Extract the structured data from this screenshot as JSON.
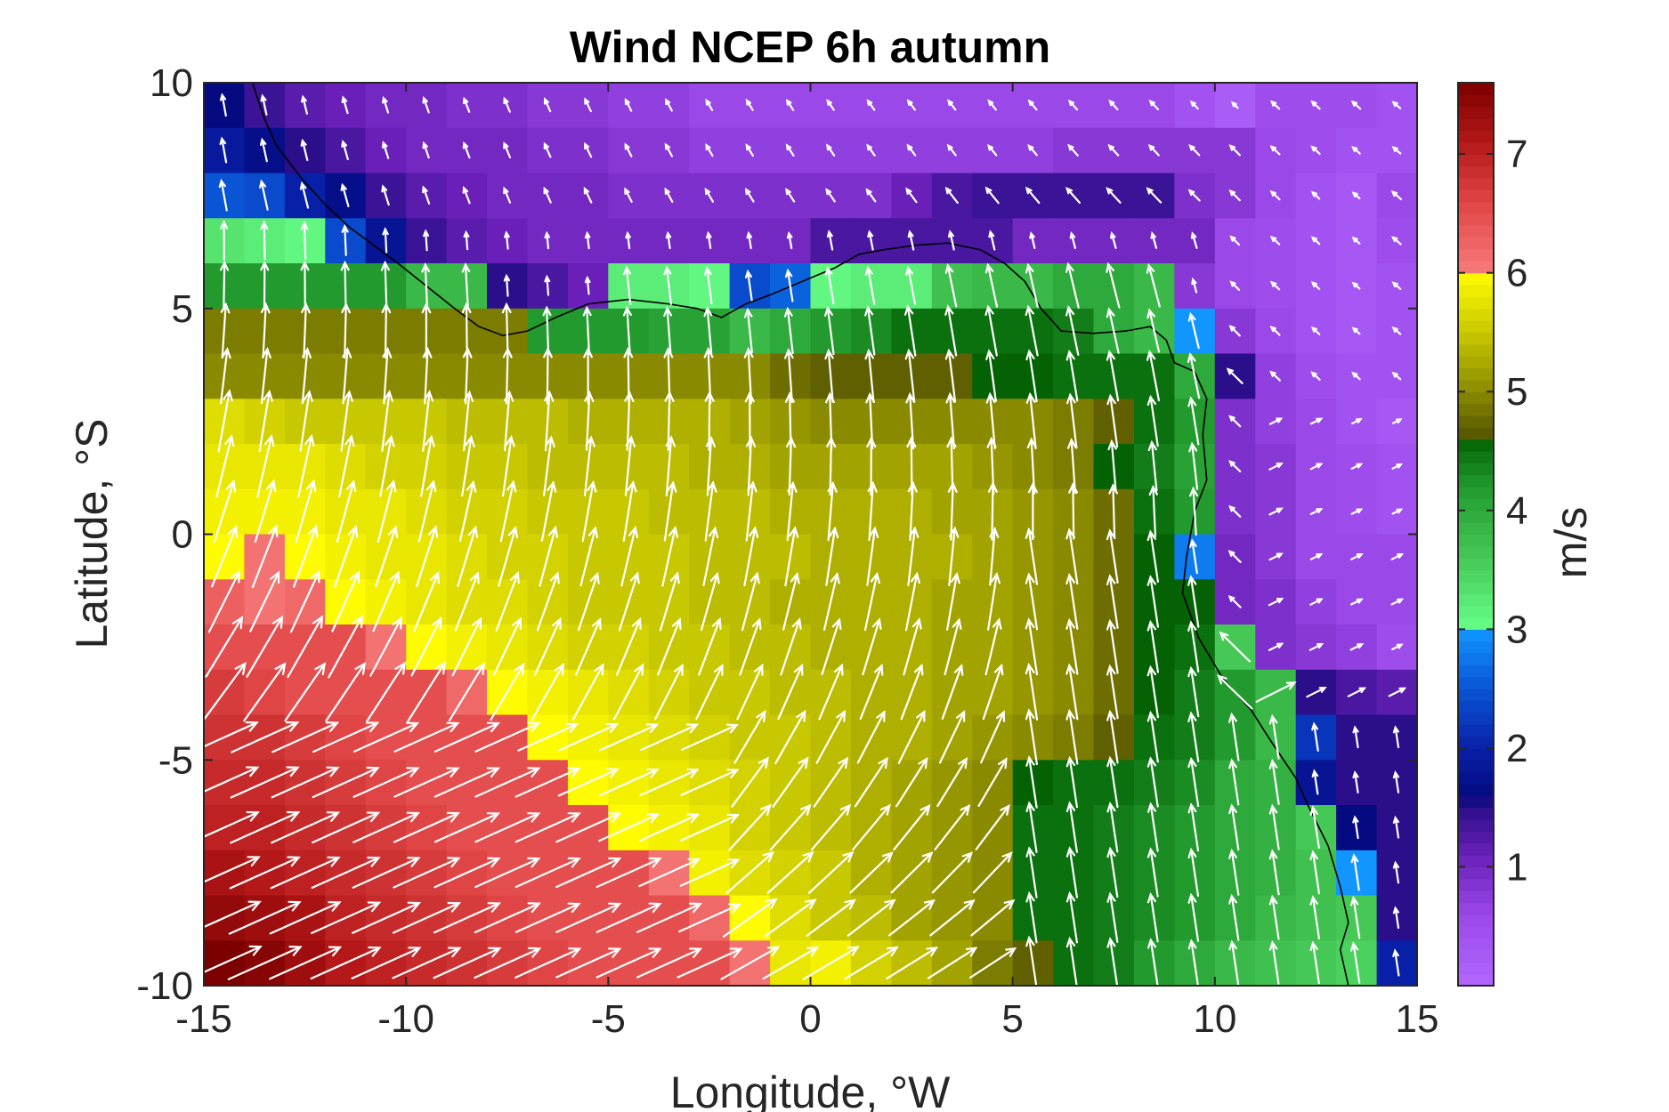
{
  "chart_data": {
    "type": "heatmap",
    "title": "Wind NCEP 6h autumn",
    "xlabel": "Longitude, °W",
    "ylabel": "Latitude, °S",
    "xlim": [
      -15,
      15
    ],
    "ylim": [
      -10,
      10
    ],
    "xticks": [
      -15,
      -10,
      -5,
      0,
      5,
      10,
      15
    ],
    "yticks": [
      -10,
      -5,
      0,
      5,
      10
    ],
    "grid": false,
    "overlay": "white wind vectors (quiver)",
    "coastline": "black line",
    "colorbar": {
      "label": "m/s",
      "range": [
        0,
        7.6
      ],
      "ticks": [
        1,
        2,
        3,
        4,
        5,
        6,
        7
      ],
      "position": "right"
    },
    "grid_spec": {
      "lon_start": -15,
      "lon_step": 1,
      "n_lon": 30,
      "lat_start": 9.5,
      "lat_step": -1,
      "n_lat": 20
    },
    "speed_field_description": "Wind speed in m/s on a 1-degree grid (rows from north to south).",
    "speed": [
      [
        1.6,
        1.4,
        1.2,
        1.1,
        1.0,
        1.0,
        0.9,
        0.9,
        0.8,
        0.8,
        0.7,
        0.7,
        0.6,
        0.6,
        0.6,
        0.6,
        0.6,
        0.6,
        0.6,
        0.6,
        0.6,
        0.6,
        0.6,
        0.6,
        0.4,
        0.2,
        0.5,
        0.5,
        0.5,
        0.4
      ],
      [
        1.9,
        1.7,
        1.5,
        1.3,
        1.1,
        1.0,
        1.0,
        1.0,
        0.9,
        0.9,
        0.8,
        0.8,
        0.7,
        0.7,
        0.7,
        0.7,
        0.7,
        0.7,
        0.7,
        0.7,
        0.7,
        0.8,
        0.8,
        0.8,
        0.8,
        0.8,
        0.6,
        0.5,
        0.4,
        0.4
      ],
      [
        2.5,
        2.4,
        2.0,
        1.7,
        1.4,
        1.2,
        1.1,
        1.0,
        1.0,
        1.0,
        0.9,
        0.9,
        0.9,
        0.9,
        0.9,
        0.9,
        0.9,
        1.1,
        1.3,
        1.4,
        1.4,
        1.4,
        1.4,
        1.4,
        0.9,
        0.8,
        0.6,
        0.4,
        0.3,
        0.6
      ],
      [
        3.3,
        3.2,
        3.1,
        2.4,
        1.8,
        1.4,
        1.2,
        1.1,
        1.0,
        1.0,
        1.0,
        1.0,
        1.0,
        1.0,
        1.0,
        1.3,
        1.3,
        1.3,
        1.3,
        1.3,
        1.0,
        1.0,
        1.0,
        1.0,
        1.0,
        0.6,
        0.5,
        0.4,
        0.3,
        0.5
      ],
      [
        4.2,
        4.2,
        4.2,
        4.2,
        4.2,
        3.8,
        3.8,
        1.5,
        1.3,
        1.1,
        3.2,
        3.2,
        3.1,
        2.4,
        2.6,
        3.1,
        3.2,
        3.2,
        3.7,
        3.8,
        3.8,
        4.0,
        4.0,
        3.8,
        0.8,
        0.6,
        0.5,
        0.4,
        0.3,
        0.4
      ],
      [
        4.9,
        4.9,
        4.9,
        4.9,
        4.9,
        4.9,
        4.9,
        4.9,
        4.2,
        4.2,
        4.2,
        4.1,
        4.1,
        3.8,
        4.0,
        4.2,
        4.3,
        4.5,
        4.5,
        4.5,
        4.5,
        4.4,
        4.0,
        3.8,
        3.0,
        0.8,
        0.6,
        0.4,
        0.3,
        0.4
      ],
      [
        5.0,
        5.0,
        5.0,
        5.0,
        5.0,
        5.0,
        5.0,
        5.0,
        5.0,
        5.0,
        5.0,
        5.0,
        5.0,
        5.0,
        4.8,
        4.7,
        4.7,
        4.7,
        4.7,
        4.6,
        4.6,
        4.5,
        4.5,
        4.5,
        4.0,
        1.5,
        0.7,
        0.5,
        0.4,
        0.4
      ],
      [
        5.7,
        5.6,
        5.5,
        5.5,
        5.5,
        5.5,
        5.4,
        5.4,
        5.4,
        5.3,
        5.3,
        5.3,
        5.3,
        5.2,
        5.1,
        5.0,
        5.0,
        5.0,
        5.0,
        5.0,
        5.0,
        4.9,
        4.7,
        4.5,
        4.2,
        0.9,
        0.7,
        0.6,
        0.4,
        0.3
      ],
      [
        5.8,
        5.8,
        5.8,
        5.7,
        5.6,
        5.6,
        5.5,
        5.5,
        5.4,
        5.4,
        5.4,
        5.4,
        5.3,
        5.3,
        5.2,
        5.2,
        5.2,
        5.2,
        5.2,
        5.1,
        5.0,
        4.9,
        4.6,
        4.4,
        4.1,
        0.9,
        0.8,
        0.6,
        0.5,
        0.4
      ],
      [
        5.9,
        5.9,
        5.9,
        5.8,
        5.8,
        5.7,
        5.6,
        5.6,
        5.5,
        5.5,
        5.5,
        5.4,
        5.4,
        5.4,
        5.3,
        5.3,
        5.3,
        5.3,
        5.2,
        5.2,
        5.1,
        5.0,
        4.8,
        4.5,
        4.2,
        0.9,
        0.8,
        0.6,
        0.5,
        0.4
      ],
      [
        6.0,
        6.1,
        6.0,
        5.9,
        5.8,
        5.8,
        5.7,
        5.6,
        5.6,
        5.5,
        5.5,
        5.5,
        5.4,
        5.4,
        5.4,
        5.3,
        5.3,
        5.3,
        5.3,
        5.2,
        5.1,
        5.0,
        4.8,
        4.6,
        2.8,
        1.0,
        0.8,
        0.6,
        0.6,
        0.6
      ],
      [
        6.3,
        6.1,
        6.2,
        6.0,
        5.9,
        5.8,
        5.7,
        5.7,
        5.6,
        5.5,
        5.5,
        5.5,
        5.4,
        5.4,
        5.3,
        5.3,
        5.3,
        5.3,
        5.2,
        5.2,
        5.1,
        5.0,
        4.8,
        4.6,
        4.6,
        1.0,
        0.9,
        0.7,
        0.6,
        0.6
      ],
      [
        6.5,
        6.5,
        6.5,
        6.5,
        6.1,
        6.0,
        5.9,
        5.8,
        5.7,
        5.6,
        5.6,
        5.5,
        5.5,
        5.4,
        5.4,
        5.3,
        5.3,
        5.3,
        5.2,
        5.2,
        5.1,
        5.0,
        4.8,
        4.6,
        4.5,
        3.6,
        0.9,
        0.8,
        0.7,
        0.5
      ],
      [
        6.7,
        6.6,
        6.5,
        6.5,
        6.5,
        6.5,
        6.2,
        6.0,
        5.9,
        5.8,
        5.7,
        5.6,
        5.5,
        5.5,
        5.4,
        5.4,
        5.3,
        5.3,
        5.2,
        5.2,
        5.1,
        5.0,
        4.8,
        4.6,
        4.4,
        4.2,
        3.8,
        1.5,
        1.3,
        1.2
      ],
      [
        6.8,
        6.8,
        6.7,
        6.6,
        6.5,
        6.5,
        6.5,
        6.5,
        6.0,
        5.9,
        5.8,
        5.7,
        5.6,
        5.5,
        5.5,
        5.4,
        5.3,
        5.3,
        5.2,
        5.1,
        5.0,
        4.9,
        4.7,
        4.5,
        4.4,
        4.2,
        3.8,
        2.2,
        1.5,
        1.5
      ],
      [
        6.9,
        6.9,
        6.8,
        6.7,
        6.6,
        6.5,
        6.5,
        6.5,
        6.5,
        6.0,
        5.9,
        5.8,
        5.7,
        5.6,
        5.5,
        5.4,
        5.3,
        5.2,
        5.1,
        5.0,
        4.6,
        4.5,
        4.5,
        4.4,
        4.3,
        4.0,
        3.9,
        1.8,
        1.5,
        1.5
      ],
      [
        7.0,
        7.0,
        6.9,
        6.8,
        6.7,
        6.6,
        6.5,
        6.5,
        6.5,
        6.5,
        6.0,
        5.9,
        5.8,
        5.6,
        5.5,
        5.4,
        5.3,
        5.2,
        5.1,
        5.0,
        4.5,
        4.5,
        4.4,
        4.3,
        4.2,
        4.0,
        3.9,
        3.6,
        1.6,
        1.5
      ],
      [
        7.2,
        7.1,
        7.0,
        6.9,
        6.8,
        6.7,
        6.6,
        6.5,
        6.5,
        6.5,
        6.5,
        6.1,
        5.9,
        5.7,
        5.6,
        5.5,
        5.3,
        5.2,
        5.1,
        5.0,
        4.5,
        4.5,
        4.4,
        4.3,
        4.2,
        4.0,
        3.9,
        3.7,
        3.0,
        1.5
      ],
      [
        7.4,
        7.3,
        7.2,
        7.0,
        6.9,
        6.8,
        6.7,
        6.6,
        6.5,
        6.5,
        6.5,
        6.5,
        6.2,
        6.0,
        5.7,
        5.5,
        5.4,
        5.2,
        5.1,
        5.0,
        4.5,
        4.5,
        4.4,
        4.3,
        4.2,
        4.0,
        3.8,
        3.7,
        3.6,
        1.5
      ],
      [
        7.6,
        7.5,
        7.3,
        7.1,
        7.0,
        6.9,
        6.8,
        6.7,
        6.6,
        6.5,
        6.5,
        6.5,
        6.5,
        6.1,
        5.8,
        5.9,
        5.6,
        5.4,
        5.2,
        4.9,
        4.7,
        4.5,
        4.4,
        4.2,
        4.0,
        3.8,
        3.7,
        3.6,
        3.5,
        2.0
      ]
    ],
    "source_field_description": "Flow pattern: wind diverges from a high-speed area in the southwest and turns northward (northeastward) towards the northern coast, with weak and variable winds in the northeast.",
    "colormap_stops": [
      {
        "v": 0.0,
        "c": "#b266ff"
      },
      {
        "v": 0.6,
        "c": "#9a48e8"
      },
      {
        "v": 1.1,
        "c": "#6a20b8"
      },
      {
        "v": 1.5,
        "c": "#2a0e8a"
      },
      {
        "v": 1.6,
        "c": "#050a80"
      },
      {
        "v": 2.0,
        "c": "#0820a8"
      },
      {
        "v": 2.5,
        "c": "#0a55d5"
      },
      {
        "v": 3.0,
        "c": "#1196ff"
      },
      {
        "v": 3.01,
        "c": "#66ff88"
      },
      {
        "v": 3.6,
        "c": "#46c856"
      },
      {
        "v": 4.2,
        "c": "#229a2e"
      },
      {
        "v": 4.6,
        "c": "#046204"
      },
      {
        "v": 4.61,
        "c": "#545400"
      },
      {
        "v": 5.0,
        "c": "#8a8a00"
      },
      {
        "v": 5.5,
        "c": "#c8c800"
      },
      {
        "v": 6.0,
        "c": "#fffb00"
      },
      {
        "v": 6.01,
        "c": "#f77a7a"
      },
      {
        "v": 6.6,
        "c": "#e04545"
      },
      {
        "v": 7.1,
        "c": "#b41818"
      },
      {
        "v": 7.6,
        "c": "#7c0000"
      }
    ]
  }
}
